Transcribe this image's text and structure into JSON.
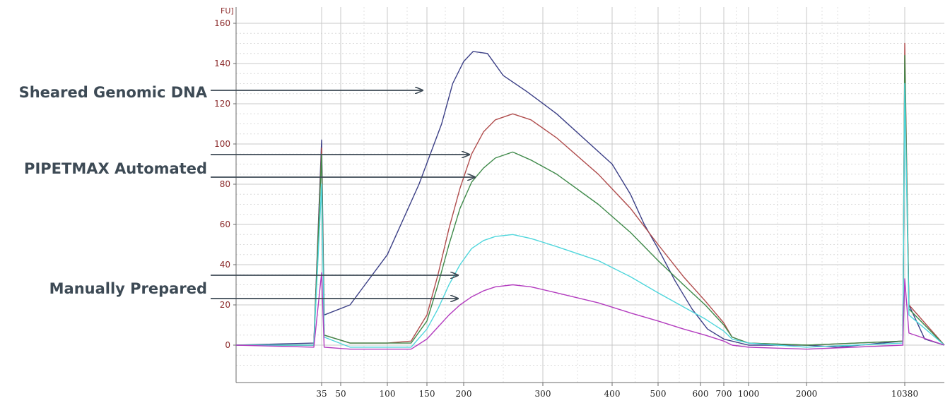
{
  "chart_data": {
    "type": "line",
    "y_unit_label": "FU]",
    "xlabel": "",
    "ylabel": "",
    "yticks": [
      0,
      20,
      40,
      60,
      80,
      100,
      120,
      140,
      160
    ],
    "xtick_labels": [
      "35",
      "50",
      "100",
      "150",
      "200",
      "300",
      "400",
      "500",
      "600",
      "700",
      "1000",
      "2000",
      "10380"
    ],
    "grid": true,
    "annotations": [
      {
        "text": "Sheared Genomic DNA",
        "targets": [
          "genomic"
        ]
      },
      {
        "text": "PIPETMAX Automated",
        "targets": [
          "auto1",
          "auto2"
        ]
      },
      {
        "text": "Manually Prepared",
        "targets": [
          "manual1",
          "manual2"
        ]
      }
    ],
    "series": [
      {
        "id": "genomic",
        "color": "#3b3f86",
        "points": [
          [
            24,
            0
          ],
          [
            34,
            1
          ],
          [
            35,
            102
          ],
          [
            37,
            15
          ],
          [
            60,
            20
          ],
          [
            100,
            45
          ],
          [
            140,
            80
          ],
          [
            170,
            110
          ],
          [
            185,
            130
          ],
          [
            200,
            141
          ],
          [
            212,
            146
          ],
          [
            230,
            145
          ],
          [
            250,
            134
          ],
          [
            280,
            126
          ],
          [
            320,
            115
          ],
          [
            400,
            90
          ],
          [
            440,
            75
          ],
          [
            470,
            60
          ],
          [
            500,
            48
          ],
          [
            540,
            32
          ],
          [
            580,
            18
          ],
          [
            630,
            8
          ],
          [
            700,
            3
          ],
          [
            1000,
            0
          ],
          [
            2000,
            0
          ],
          [
            4000,
            -1
          ],
          [
            10200,
            2
          ],
          [
            10380,
            136
          ],
          [
            10550,
            20
          ],
          [
            11200,
            3
          ],
          [
            12000,
            0
          ]
        ]
      },
      {
        "id": "auto1",
        "color": "#b04d4d",
        "points": [
          [
            24,
            0
          ],
          [
            34,
            0
          ],
          [
            35,
            98
          ],
          [
            37,
            5
          ],
          [
            60,
            1
          ],
          [
            100,
            1
          ],
          [
            130,
            2
          ],
          [
            150,
            15
          ],
          [
            165,
            35
          ],
          [
            180,
            58
          ],
          [
            195,
            78
          ],
          [
            210,
            95
          ],
          [
            225,
            106
          ],
          [
            240,
            112
          ],
          [
            262,
            115
          ],
          [
            285,
            112
          ],
          [
            320,
            103
          ],
          [
            380,
            85
          ],
          [
            440,
            68
          ],
          [
            500,
            50
          ],
          [
            560,
            34
          ],
          [
            620,
            22
          ],
          [
            700,
            11
          ],
          [
            800,
            4
          ],
          [
            1000,
            1
          ],
          [
            2000,
            0
          ],
          [
            10200,
            2
          ],
          [
            10380,
            150
          ],
          [
            10550,
            20
          ],
          [
            12000,
            0
          ]
        ]
      },
      {
        "id": "auto2",
        "color": "#3f8a4a",
        "points": [
          [
            24,
            0
          ],
          [
            34,
            0
          ],
          [
            35,
            95
          ],
          [
            37,
            5
          ],
          [
            60,
            1
          ],
          [
            100,
            1
          ],
          [
            130,
            1
          ],
          [
            150,
            12
          ],
          [
            165,
            30
          ],
          [
            180,
            50
          ],
          [
            195,
            68
          ],
          [
            210,
            81
          ],
          [
            225,
            88
          ],
          [
            240,
            93
          ],
          [
            262,
            96
          ],
          [
            285,
            92
          ],
          [
            320,
            85
          ],
          [
            380,
            70
          ],
          [
            440,
            56
          ],
          [
            500,
            42
          ],
          [
            560,
            30
          ],
          [
            620,
            20
          ],
          [
            700,
            10
          ],
          [
            800,
            4
          ],
          [
            1000,
            1
          ],
          [
            2000,
            0
          ],
          [
            10200,
            2
          ],
          [
            10380,
            144
          ],
          [
            10550,
            18
          ],
          [
            12000,
            0
          ]
        ]
      },
      {
        "id": "manual1",
        "color": "#4fd6dc",
        "points": [
          [
            24,
            0
          ],
          [
            34,
            0
          ],
          [
            35,
            80
          ],
          [
            37,
            4
          ],
          [
            60,
            -1
          ],
          [
            100,
            -1
          ],
          [
            130,
            -1
          ],
          [
            150,
            8
          ],
          [
            165,
            18
          ],
          [
            180,
            30
          ],
          [
            195,
            40
          ],
          [
            210,
            48
          ],
          [
            225,
            52
          ],
          [
            240,
            54
          ],
          [
            262,
            55
          ],
          [
            285,
            53
          ],
          [
            320,
            49
          ],
          [
            380,
            42
          ],
          [
            440,
            34
          ],
          [
            500,
            26
          ],
          [
            560,
            19
          ],
          [
            620,
            13
          ],
          [
            700,
            7
          ],
          [
            800,
            3
          ],
          [
            1000,
            1
          ],
          [
            2000,
            -1
          ],
          [
            10200,
            1
          ],
          [
            10380,
            130
          ],
          [
            10550,
            15
          ],
          [
            12000,
            0
          ]
        ]
      },
      {
        "id": "manual2",
        "color": "#b33cbf",
        "points": [
          [
            24,
            0
          ],
          [
            34,
            -1
          ],
          [
            35,
            36
          ],
          [
            37,
            -1
          ],
          [
            60,
            -2
          ],
          [
            100,
            -2
          ],
          [
            130,
            -2
          ],
          [
            150,
            3
          ],
          [
            165,
            9
          ],
          [
            180,
            15
          ],
          [
            195,
            20
          ],
          [
            210,
            24
          ],
          [
            225,
            27
          ],
          [
            240,
            29
          ],
          [
            262,
            30
          ],
          [
            285,
            29
          ],
          [
            320,
            26
          ],
          [
            380,
            21
          ],
          [
            440,
            16
          ],
          [
            500,
            12
          ],
          [
            560,
            8
          ],
          [
            620,
            5
          ],
          [
            700,
            2
          ],
          [
            800,
            0
          ],
          [
            1000,
            -1
          ],
          [
            2000,
            -2
          ],
          [
            10200,
            0
          ],
          [
            10380,
            33
          ],
          [
            10550,
            6
          ],
          [
            12000,
            0
          ]
        ]
      }
    ]
  }
}
